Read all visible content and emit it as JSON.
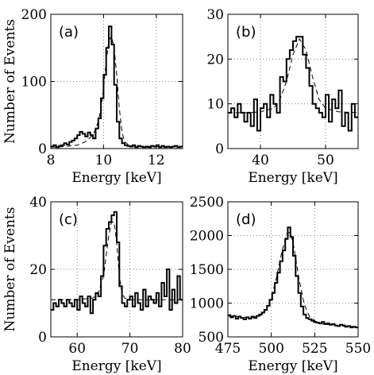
{
  "chart_data": [
    {
      "type": "histogram",
      "panel_label": "(a)",
      "xlabel": "Energy [keV]",
      "ylabel": "Number of Events",
      "xlim": [
        8,
        13
      ],
      "ylim": [
        0,
        200
      ],
      "xticks": [
        8,
        10,
        12
      ],
      "yticks": [
        0,
        100,
        200
      ],
      "grid": true,
      "series": [
        {
          "name": "",
          "kind": "histogram",
          "bin_edges": [
            8.0,
            8.1,
            8.2,
            8.3,
            8.4,
            8.5,
            8.6,
            8.7,
            8.8,
            8.9,
            9.0,
            9.1,
            9.2,
            9.3,
            9.4,
            9.5,
            9.6,
            9.7,
            9.8,
            9.9,
            10.0,
            10.1,
            10.2,
            10.3,
            10.4,
            10.5,
            10.6,
            10.7,
            10.8,
            10.9,
            11.0,
            11.1,
            11.2,
            11.3,
            11.4,
            11.5,
            11.6,
            11.7,
            11.8,
            11.9,
            12.0,
            12.1,
            12.2,
            12.3,
            12.4,
            12.5,
            12.6,
            12.7,
            12.8,
            12.9,
            13.0
          ],
          "counts": [
            3,
            5,
            2,
            4,
            5,
            8,
            6,
            10,
            12,
            15,
            20,
            25,
            22,
            18,
            24,
            20,
            15,
            30,
            45,
            75,
            110,
            150,
            182,
            155,
            95,
            40,
            15,
            8,
            5,
            4,
            3,
            5,
            2,
            4,
            3,
            2,
            3,
            2,
            4,
            3,
            5,
            2,
            4,
            2,
            3,
            2,
            3,
            4,
            2,
            3
          ]
        },
        {
          "name": "",
          "kind": "fit",
          "x": [
            8.0,
            8.5,
            9.0,
            9.3,
            9.6,
            9.8,
            9.9,
            10.0,
            10.1,
            10.2,
            10.3,
            10.4,
            10.5,
            10.6,
            10.7,
            10.8,
            11.0,
            11.5,
            12.0,
            12.5,
            13.0
          ],
          "y": [
            2,
            3,
            5,
            10,
            20,
            40,
            60,
            90,
            130,
            160,
            168,
            150,
            110,
            60,
            25,
            10,
            4,
            3,
            3,
            3,
            3
          ]
        }
      ]
    },
    {
      "type": "histogram",
      "panel_label": "(b)",
      "xlabel": "Energy [keV]",
      "ylabel": "",
      "xlim": [
        35,
        55
      ],
      "ylim": [
        0,
        30
      ],
      "xticks": [
        40,
        50
      ],
      "yticks": [
        0,
        10,
        20,
        30
      ],
      "grid": true,
      "series": [
        {
          "name": "",
          "kind": "histogram",
          "bin_edges": [
            35.0,
            35.5,
            36.0,
            36.5,
            37.0,
            37.5,
            38.0,
            38.5,
            39.0,
            39.5,
            40.0,
            40.5,
            41.0,
            41.5,
            42.0,
            42.5,
            43.0,
            43.5,
            44.0,
            44.5,
            45.0,
            45.5,
            46.0,
            46.5,
            47.0,
            47.5,
            48.0,
            48.5,
            49.0,
            49.5,
            50.0,
            50.5,
            51.0,
            51.5,
            52.0,
            52.5,
            53.0,
            53.5,
            54.0,
            54.5,
            55.0
          ],
          "counts": [
            8,
            9,
            7,
            10,
            8,
            6,
            8,
            5,
            11,
            4,
            9,
            10,
            7,
            12,
            10,
            8,
            16,
            15,
            20,
            22,
            24,
            25,
            25,
            21,
            18,
            14,
            10,
            9,
            8,
            7,
            12,
            6,
            11,
            9,
            13,
            5,
            8,
            4,
            10,
            7
          ]
        },
        {
          "name": "",
          "kind": "fit",
          "x": [
            35,
            38,
            40,
            42,
            43,
            44,
            45,
            46,
            47,
            48,
            49,
            50,
            52,
            55
          ],
          "y": [
            8,
            8,
            8.2,
            9,
            11,
            15,
            21,
            24.5,
            22,
            16,
            11,
            9,
            8.2,
            8
          ]
        }
      ]
    },
    {
      "type": "histogram",
      "panel_label": "(c)",
      "xlabel": "Energy [keV]",
      "ylabel": "Number of Events",
      "xlim": [
        55,
        80
      ],
      "ylim": [
        0,
        40
      ],
      "xticks": [
        60,
        70,
        80
      ],
      "yticks": [
        0,
        20,
        40
      ],
      "grid": true,
      "series": [
        {
          "name": "",
          "kind": "histogram",
          "bin_edges": [
            55.0,
            55.5,
            56.0,
            56.5,
            57.0,
            57.5,
            58.0,
            58.5,
            59.0,
            59.5,
            60.0,
            60.5,
            61.0,
            61.5,
            62.0,
            62.5,
            63.0,
            63.5,
            64.0,
            64.5,
            65.0,
            65.5,
            66.0,
            66.5,
            67.0,
            67.5,
            68.0,
            68.5,
            69.0,
            69.5,
            70.0,
            70.5,
            71.0,
            71.5,
            72.0,
            72.5,
            73.0,
            73.5,
            74.0,
            74.5,
            75.0,
            75.5,
            76.0,
            76.5,
            77.0,
            77.5,
            78.0,
            78.5,
            79.0,
            79.5,
            80.0
          ],
          "counts": [
            8,
            10,
            9,
            11,
            10,
            9,
            11,
            10,
            9,
            11,
            8,
            12,
            10,
            9,
            12,
            7,
            11,
            13,
            12,
            18,
            27,
            32,
            34,
            36,
            37,
            28,
            15,
            10,
            9,
            11,
            12,
            9,
            13,
            10,
            8,
            14,
            9,
            12,
            11,
            10,
            13,
            9,
            16,
            12,
            20,
            8,
            14,
            10,
            18,
            11
          ]
        },
        {
          "name": "",
          "kind": "fit",
          "x": [
            55,
            60,
            63,
            64,
            65,
            65.5,
            66,
            66.5,
            67,
            67.5,
            68,
            68.5,
            69,
            70,
            75,
            80
          ],
          "y": [
            11,
            11,
            11.5,
            13,
            18,
            24,
            30,
            34,
            34,
            28,
            18,
            13,
            11.5,
            11,
            11,
            11
          ]
        }
      ]
    },
    {
      "type": "histogram",
      "panel_label": "(d)",
      "xlabel": "Energy [keV]",
      "ylabel": "",
      "xlim": [
        475,
        550
      ],
      "ylim": [
        500,
        2500
      ],
      "xticks": [
        475,
        500,
        525,
        550
      ],
      "yticks": [
        500,
        1000,
        1500,
        2000,
        2500
      ],
      "grid": true,
      "series": [
        {
          "name": "",
          "kind": "histogram",
          "bin_edges": [
            475,
            476.5,
            478,
            479.5,
            481,
            482.5,
            484,
            485.5,
            487,
            488.5,
            490,
            491.5,
            493,
            494.5,
            496,
            497.5,
            499,
            500.5,
            502,
            503.5,
            505,
            506.5,
            508,
            509.5,
            511,
            512.5,
            514,
            515.5,
            517,
            518.5,
            520,
            521.5,
            523,
            524.5,
            526,
            527.5,
            529,
            530.5,
            532,
            533.5,
            535,
            536.5,
            538,
            539.5,
            541,
            542.5,
            544,
            545.5,
            547,
            548.5,
            550
          ],
          "counts": [
            820,
            790,
            810,
            770,
            800,
            780,
            760,
            790,
            770,
            800,
            780,
            810,
            830,
            860,
            900,
            960,
            1050,
            1150,
            1300,
            1450,
            1620,
            1780,
            1950,
            2120,
            1980,
            1700,
            1400,
            1150,
            950,
            830,
            780,
            760,
            740,
            720,
            710,
            700,
            720,
            690,
            700,
            680,
            690,
            670,
            660,
            680,
            670,
            650,
            660,
            640,
            650,
            640
          ]
        },
        {
          "name": "",
          "kind": "fit",
          "x": [
            475,
            480,
            485,
            490,
            494,
            497,
            500,
            503,
            506,
            509,
            511,
            513,
            516,
            519,
            522,
            526,
            530,
            540,
            550
          ],
          "y": [
            810,
            800,
            790,
            790,
            820,
            900,
            1080,
            1380,
            1750,
            2030,
            2050,
            1830,
            1350,
            980,
            800,
            720,
            690,
            660,
            650
          ]
        }
      ]
    }
  ]
}
